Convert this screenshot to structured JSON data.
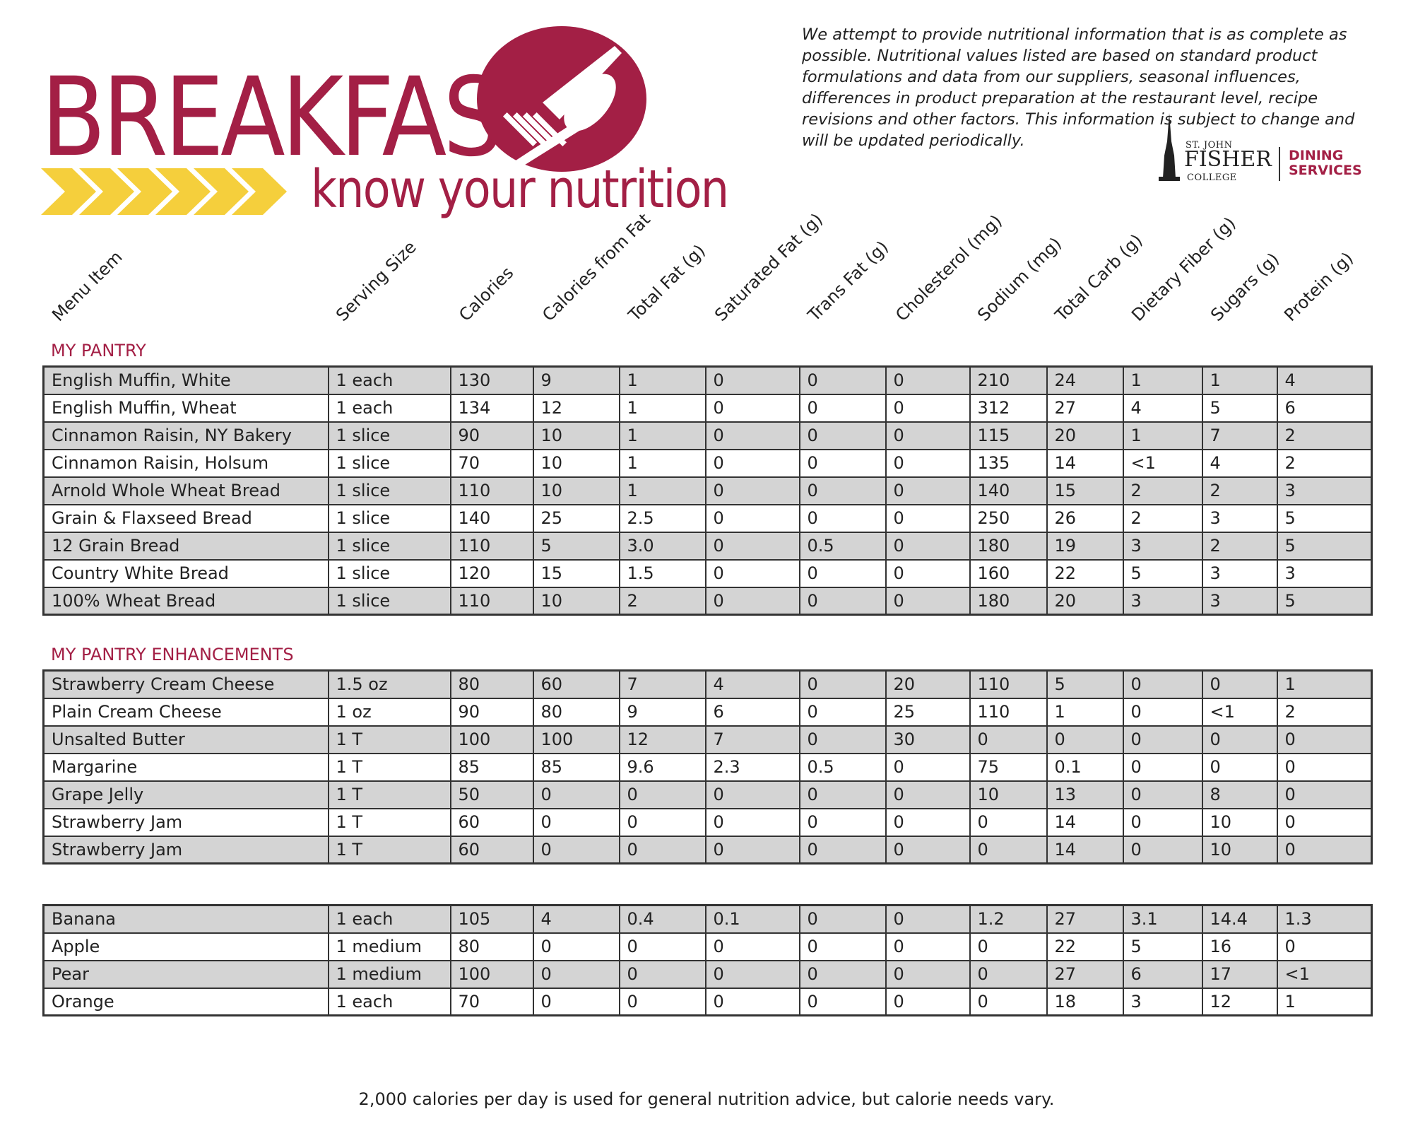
{
  "header": {
    "title": "BREAKFAST",
    "subtitle": "know your nutrition",
    "disclaimer": "We attempt to provide nutritional information that is as complete as possible. Nutritional values listed are based on standard product formulations and data from our suppliers, seasonal influences, differences in product preparation at the restaurant level, recipe revisions and other factors. This information is subject to change and will be updated periodically.",
    "logo": {
      "st_john": "ST. JOHN",
      "fisher": "FISHER",
      "college": "COLLEGE",
      "dining_line1": "DINING",
      "dining_line2": "SERVICES"
    }
  },
  "colors": {
    "brand": "#a31f45",
    "accent": "#f5cf3c",
    "shade": "#d4d4d4"
  },
  "columns": [
    "Menu Item",
    "Serving Size",
    "Calories",
    "Calories from Fat",
    "Total Fat (g)",
    "Saturated Fat (g)",
    "Trans Fat (g)",
    "Cholesterol (mg)",
    "Sodium (mg)",
    "Total Carb (g)",
    "Dietary Fiber (g)",
    "Sugars (g)",
    "Protein (g)"
  ],
  "sections": [
    {
      "label": "MY PANTRY",
      "rows": [
        [
          "English Muffin, White",
          "1 each",
          "130",
          "9",
          "1",
          "0",
          "0",
          "0",
          "210",
          "24",
          "1",
          "1",
          "4"
        ],
        [
          "English Muffin, Wheat",
          "1 each",
          "134",
          "12",
          "1",
          "0",
          "0",
          "0",
          "312",
          "27",
          "4",
          "5",
          "6"
        ],
        [
          "Cinnamon Raisin, NY Bakery",
          "1 slice",
          "90",
          "10",
          "1",
          "0",
          "0",
          "0",
          "115",
          "20",
          "1",
          "7",
          "2"
        ],
        [
          "Cinnamon Raisin, Holsum",
          "1 slice",
          "70",
          "10",
          "1",
          "0",
          "0",
          "0",
          "135",
          "14",
          "<1",
          "4",
          "2"
        ],
        [
          "Arnold Whole Wheat Bread",
          "1 slice",
          "110",
          "10",
          "1",
          "0",
          "0",
          "0",
          "140",
          "15",
          "2",
          "2",
          "3"
        ],
        [
          "Grain & Flaxseed Bread",
          "1 slice",
          "140",
          "25",
          "2.5",
          "0",
          "0",
          "0",
          "250",
          "26",
          "2",
          "3",
          "5"
        ],
        [
          "12 Grain Bread",
          "1 slice",
          "110",
          "5",
          "3.0",
          "0",
          "0.5",
          "0",
          "180",
          "19",
          "3",
          "2",
          "5"
        ],
        [
          "Country White Bread",
          "1 slice",
          "120",
          "15",
          "1.5",
          "0",
          "0",
          "0",
          "160",
          "22",
          "5",
          "3",
          "3"
        ],
        [
          "100% Wheat Bread",
          "1 slice",
          "110",
          "10",
          "2",
          "0",
          "0",
          "0",
          "180",
          "20",
          "3",
          "3",
          "5"
        ]
      ]
    },
    {
      "label": "MY PANTRY ENHANCEMENTS",
      "rows": [
        [
          "Strawberry Cream Cheese",
          "1.5 oz",
          "80",
          "60",
          "7",
          "4",
          "0",
          "20",
          "110",
          "5",
          "0",
          "0",
          "1"
        ],
        [
          "Plain Cream Cheese",
          "1 oz",
          "90",
          "80",
          "9",
          "6",
          "0",
          "25",
          "110",
          "1",
          "0",
          "<1",
          "2"
        ],
        [
          "Unsalted Butter",
          "1 T",
          "100",
          "100",
          "12",
          "7",
          "0",
          "30",
          "0",
          "0",
          "0",
          "0",
          "0"
        ],
        [
          "Margarine",
          "1 T",
          "85",
          "85",
          "9.6",
          "2.3",
          "0.5",
          "0",
          "75",
          "0.1",
          "0",
          "0",
          "0"
        ],
        [
          "Grape Jelly",
          "1 T",
          "50",
          "0",
          "0",
          "0",
          "0",
          "0",
          "10",
          "13",
          "0",
          "8",
          "0"
        ],
        [
          "Strawberry Jam",
          "1 T",
          "60",
          "0",
          "0",
          "0",
          "0",
          "0",
          "0",
          "14",
          "0",
          "10",
          "0"
        ],
        [
          "Strawberry Jam",
          "1 T",
          "60",
          "0",
          "0",
          "0",
          "0",
          "0",
          "0",
          "14",
          "0",
          "10",
          "0"
        ]
      ]
    },
    {
      "label": "",
      "rows": [
        [
          "Banana",
          "1 each",
          "105",
          "4",
          "0.4",
          "0.1",
          "0",
          "0",
          "1.2",
          "27",
          "3.1",
          "14.4",
          "1.3"
        ],
        [
          "Apple",
          "1 medium",
          "80",
          "0",
          "0",
          "0",
          "0",
          "0",
          "0",
          "22",
          "5",
          "16",
          "0"
        ],
        [
          "Pear",
          "1 medium",
          "100",
          "0",
          "0",
          "0",
          "0",
          "0",
          "0",
          "27",
          "6",
          "17",
          "<1"
        ],
        [
          "Orange",
          "1 each",
          "70",
          "0",
          "0",
          "0",
          "0",
          "0",
          "0",
          "18",
          "3",
          "12",
          "1"
        ]
      ]
    }
  ],
  "footer": "2,000 calories per day is used for general nutrition advice, but calorie needs vary."
}
